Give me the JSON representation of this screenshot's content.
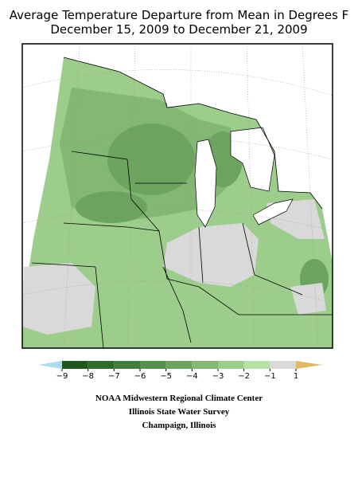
{
  "header": {
    "title_lines": [
      "Average Temperature Departure from Mean in Degrees F",
      "December 15, 2009 to December 21, 2009"
    ]
  },
  "legend": {
    "ticks": [
      {
        "value": -9,
        "label": "−9"
      },
      {
        "value": -8,
        "label": "−8"
      },
      {
        "value": -7,
        "label": "−7"
      },
      {
        "value": -6,
        "label": "−6"
      },
      {
        "value": -5,
        "label": "−5"
      },
      {
        "value": -4,
        "label": "−4"
      },
      {
        "value": -3,
        "label": "−3"
      },
      {
        "value": -2,
        "label": "−2"
      },
      {
        "value": -1,
        "label": "−1"
      },
      1
    ],
    "colors": [
      "#a8dcef",
      "#1f5a1c",
      "#2f6c2a",
      "#427d3c",
      "#56904d",
      "#6ba35f",
      "#82b873",
      "#9ccd8b",
      "#b5e0a3",
      "#d9d9d9",
      "#e2b864"
    ]
  },
  "footer": {
    "lines": [
      "NOAA Midwestern Regional Climate Center",
      "Illinois State Water Survey",
      "Champaign, Illinois"
    ]
  }
}
